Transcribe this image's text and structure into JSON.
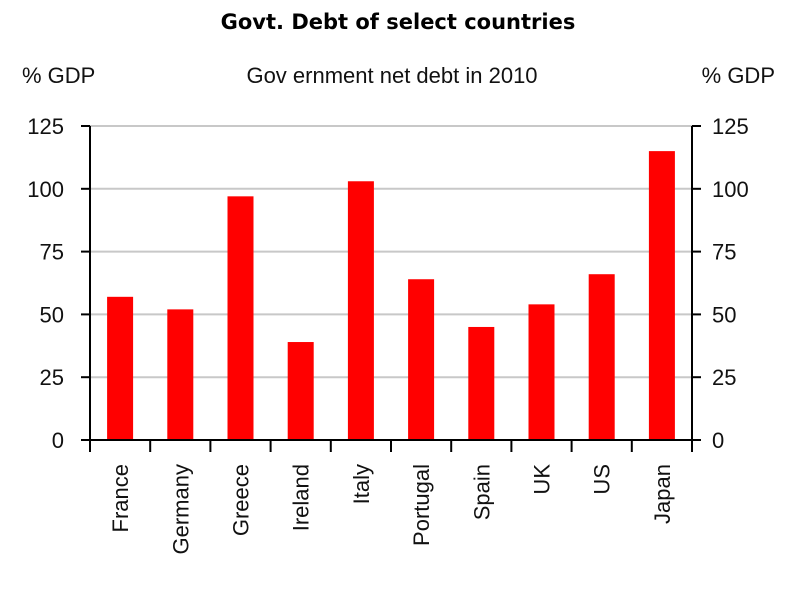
{
  "heading": "Govt. Debt of select countries",
  "chart_data": {
    "type": "bar",
    "title": "Gov ernment net debt in 2010",
    "ylabel_left": "% GDP",
    "ylabel_right": "% GDP",
    "categories": [
      "France",
      "Germany",
      "Greece",
      "Ireland",
      "Italy",
      "Portugal",
      "Spain",
      "UK",
      "US",
      "Japan"
    ],
    "values": [
      57,
      52,
      97,
      39,
      103,
      64,
      45,
      54,
      66,
      115
    ],
    "ylim": [
      0,
      125
    ],
    "yticks": [
      0,
      25,
      50,
      75,
      100,
      125
    ],
    "yticks_right": [
      0,
      25,
      50,
      75,
      100,
      125
    ],
    "grid": true,
    "bar_color": "#ff0000",
    "grid_color": "#c8c8c8",
    "axis_color": "#000000"
  }
}
